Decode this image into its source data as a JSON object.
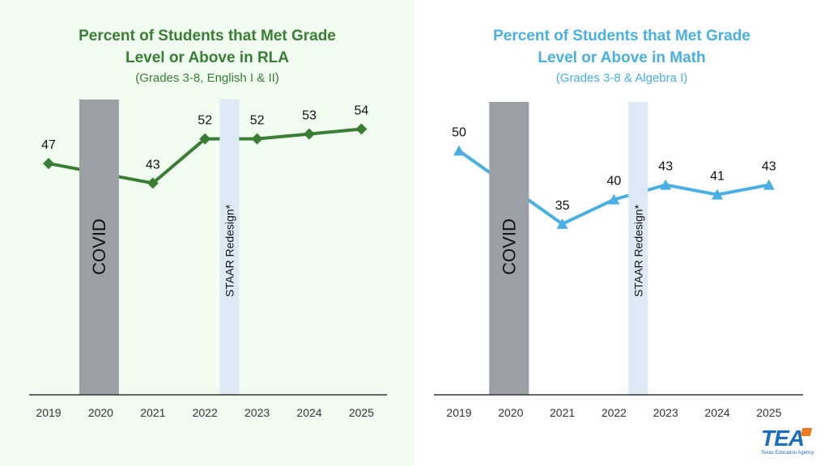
{
  "charts_text": {
    "left": {
      "title_line1": "Percent of Students that Met Grade",
      "title_line2": "Level or Above in RLA",
      "subtitle": "(Grades 3-8, English I & II)"
    },
    "right": {
      "title_line1": "Percent of Students that Met Grade",
      "title_line2": "Level or Above in Math",
      "subtitle": "(Grades 3-8 & Algebra I)"
    }
  },
  "logo": {
    "text": "TEA",
    "subtext": "Texas Education Agency"
  },
  "chart_data": [
    {
      "type": "line",
      "title": "Percent of Students that Met Grade Level or Above in RLA",
      "subtitle": "(Grades 3-8, English I & II)",
      "categories": [
        "2019",
        "2020",
        "2021",
        "2022",
        "2023",
        "2024",
        "2025"
      ],
      "x": [
        "2019",
        "2021",
        "2022",
        "2023",
        "2024",
        "2025"
      ],
      "values": [
        47,
        43,
        52,
        52,
        53,
        54
      ],
      "data_labels": [
        "47",
        "43",
        "52",
        "52",
        "53",
        "54"
      ],
      "marker": "diamond",
      "color": "#3a7d35",
      "ylim": [
        0,
        60
      ],
      "grid": false,
      "annotations": [
        {
          "label": "COVID",
          "category": "2020",
          "color": "#9aa0a6"
        },
        {
          "label": "STAAR Redesign*",
          "between": [
            "2022",
            "2023"
          ],
          "color": "#dde9f5"
        }
      ]
    },
    {
      "type": "line",
      "title": "Percent of Students that Met Grade Level or Above in Math",
      "subtitle": "(Grades 3-8 & Algebra I)",
      "categories": [
        "2019",
        "2020",
        "2021",
        "2022",
        "2023",
        "2024",
        "2025"
      ],
      "x": [
        "2019",
        "2021",
        "2022",
        "2023",
        "2024",
        "2025"
      ],
      "values": [
        50,
        35,
        40,
        43,
        41,
        43
      ],
      "data_labels": [
        "50",
        "35",
        "40",
        "43",
        "41",
        "43"
      ],
      "marker": "triangle",
      "color": "#4ab0e4",
      "ylim": [
        0,
        60
      ],
      "grid": false,
      "annotations": [
        {
          "label": "COVID",
          "category": "2020",
          "color": "#9aa0a6"
        },
        {
          "label": "STAAR Redesign*",
          "between": [
            "2022",
            "2023"
          ],
          "color": "#dde9f5"
        }
      ]
    }
  ]
}
